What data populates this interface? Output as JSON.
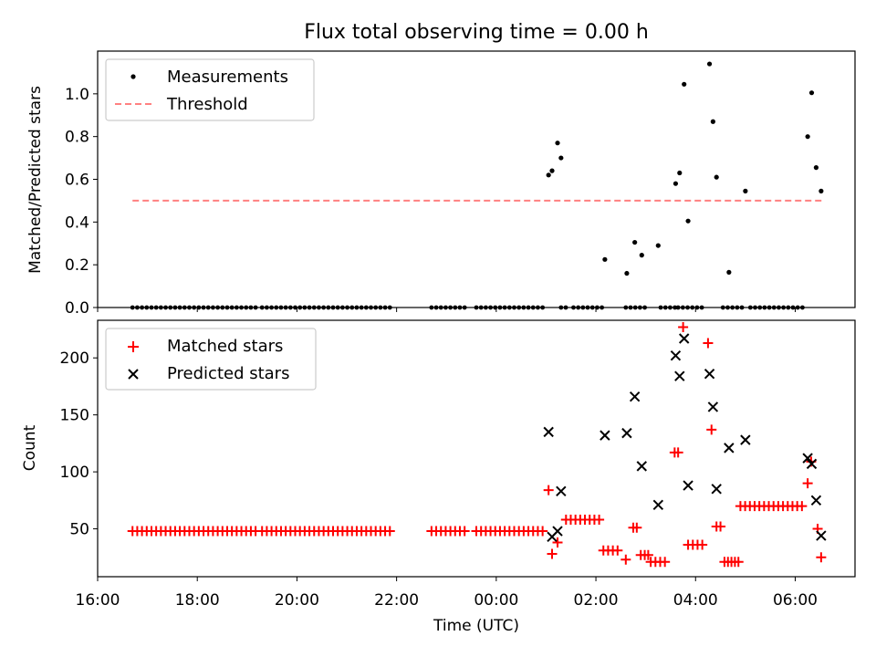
{
  "chart_data": [
    {
      "type": "scatter",
      "title": "Flux total observing time = 0.00 h",
      "ylabel": "Matched/Predicted stars",
      "xlabel": "",
      "xlim": [
        16.0,
        7.2
      ],
      "xlim_hours": [
        16.0,
        31.2
      ],
      "ylim": [
        0,
        1.2
      ],
      "yticks": [
        "0.0",
        "0.2",
        "0.4",
        "0.6",
        "0.8",
        "1.0"
      ],
      "yticks_values": [
        0,
        0.2,
        0.4,
        0.6,
        0.8,
        1.0
      ],
      "legend_position": "top-left",
      "threshold": {
        "name": "Threshold",
        "value": 0.5,
        "x_range_hours": [
          16.7,
          30.55
        ],
        "color": "#ff8080"
      },
      "measurements_name": "Measurements",
      "zero_segments_hours": [
        [
          16.7,
          19.2
        ],
        [
          19.3,
          21.95
        ],
        [
          22.7,
          23.4
        ],
        [
          23.6,
          25.0
        ],
        [
          25.3,
          25.4
        ],
        [
          25.55,
          26.2
        ],
        [
          26.6,
          27.0
        ],
        [
          27.3,
          27.6
        ],
        [
          27.65,
          28.2
        ],
        [
          28.55,
          29.0
        ],
        [
          29.1,
          30.15
        ]
      ],
      "points": [
        {
          "t": 25.05,
          "y": 0.62
        },
        {
          "t": 25.12,
          "y": 0.64
        },
        {
          "t": 25.23,
          "y": 0.77
        },
        {
          "t": 25.3,
          "y": 0.7
        },
        {
          "t": 26.18,
          "y": 0.225
        },
        {
          "t": 26.62,
          "y": 0.16
        },
        {
          "t": 26.78,
          "y": 0.305
        },
        {
          "t": 26.92,
          "y": 0.245
        },
        {
          "t": 27.25,
          "y": 0.29
        },
        {
          "t": 27.6,
          "y": 0.58
        },
        {
          "t": 27.68,
          "y": 0.63
        },
        {
          "t": 27.77,
          "y": 1.045
        },
        {
          "t": 27.85,
          "y": 0.405
        },
        {
          "t": 28.28,
          "y": 1.14
        },
        {
          "t": 28.35,
          "y": 0.87
        },
        {
          "t": 28.42,
          "y": 0.61
        },
        {
          "t": 28.67,
          "y": 0.165
        },
        {
          "t": 29.0,
          "y": 0.545
        },
        {
          "t": 30.25,
          "y": 0.8
        },
        {
          "t": 30.33,
          "y": 1.005
        },
        {
          "t": 30.42,
          "y": 0.655
        },
        {
          "t": 30.52,
          "y": 0.545
        }
      ]
    },
    {
      "type": "scatter",
      "title": "",
      "ylabel": "Count",
      "xlabel": "Time (UTC)",
      "xticks": [
        "16:00",
        "18:00",
        "20:00",
        "22:00",
        "00:00",
        "02:00",
        "04:00",
        "06:00"
      ],
      "xticks_hours": [
        16,
        18,
        20,
        22,
        24,
        26,
        28,
        30
      ],
      "xlim_hours": [
        16.0,
        31.2
      ],
      "ylim": [
        8,
        233
      ],
      "yticks": [
        "50",
        "100",
        "150",
        "200"
      ],
      "yticks_values": [
        50,
        100,
        150,
        200
      ],
      "legend_position": "top-left",
      "series": [
        {
          "name": "Matched stars",
          "marker": "plus",
          "color": "#ff0000",
          "runs": [
            {
              "from": 16.7,
              "to": 19.2,
              "y": 48
            },
            {
              "from": 19.3,
              "to": 21.95,
              "y": 48
            },
            {
              "from": 22.7,
              "to": 23.4,
              "y": 48
            },
            {
              "from": 23.6,
              "to": 25.0,
              "y": 48
            },
            {
              "from": 25.4,
              "to": 26.1,
              "y": 58
            },
            {
              "from": 26.15,
              "to": 26.5,
              "y": 31
            },
            {
              "from": 27.1,
              "to": 27.45,
              "y": 21
            },
            {
              "from": 27.85,
              "to": 28.2,
              "y": 36
            },
            {
              "from": 28.9,
              "to": 30.15,
              "y": 70
            }
          ],
          "points": [
            {
              "t": 25.05,
              "y": 84
            },
            {
              "t": 25.12,
              "y": 28
            },
            {
              "t": 25.23,
              "y": 38
            },
            {
              "t": 26.6,
              "y": 23
            },
            {
              "t": 26.75,
              "y": 51
            },
            {
              "t": 26.82,
              "y": 51
            },
            {
              "t": 26.9,
              "y": 27
            },
            {
              "t": 26.98,
              "y": 27
            },
            {
              "t": 27.05,
              "y": 27
            },
            {
              "t": 27.58,
              "y": 117
            },
            {
              "t": 27.65,
              "y": 117
            },
            {
              "t": 27.75,
              "y": 227
            },
            {
              "t": 28.25,
              "y": 213
            },
            {
              "t": 28.32,
              "y": 137
            },
            {
              "t": 28.42,
              "y": 52
            },
            {
              "t": 28.5,
              "y": 52
            },
            {
              "t": 28.58,
              "y": 21
            },
            {
              "t": 28.65,
              "y": 21
            },
            {
              "t": 28.72,
              "y": 21
            },
            {
              "t": 28.79,
              "y": 21
            },
            {
              "t": 28.86,
              "y": 21
            },
            {
              "t": 30.25,
              "y": 90
            },
            {
              "t": 30.32,
              "y": 109
            },
            {
              "t": 30.45,
              "y": 50
            },
            {
              "t": 30.52,
              "y": 25
            }
          ]
        },
        {
          "name": "Predicted stars",
          "marker": "x",
          "color": "#000000",
          "points": [
            {
              "t": 25.05,
              "y": 135
            },
            {
              "t": 25.12,
              "y": 43
            },
            {
              "t": 25.23,
              "y": 48
            },
            {
              "t": 25.3,
              "y": 83
            },
            {
              "t": 26.18,
              "y": 132
            },
            {
              "t": 26.62,
              "y": 134
            },
            {
              "t": 26.78,
              "y": 166
            },
            {
              "t": 26.92,
              "y": 105
            },
            {
              "t": 27.25,
              "y": 71
            },
            {
              "t": 27.6,
              "y": 202
            },
            {
              "t": 27.68,
              "y": 184
            },
            {
              "t": 27.77,
              "y": 217
            },
            {
              "t": 27.85,
              "y": 88
            },
            {
              "t": 28.28,
              "y": 186
            },
            {
              "t": 28.35,
              "y": 157
            },
            {
              "t": 28.42,
              "y": 85
            },
            {
              "t": 28.67,
              "y": 121
            },
            {
              "t": 29.0,
              "y": 128
            },
            {
              "t": 30.25,
              "y": 112
            },
            {
              "t": 30.33,
              "y": 107
            },
            {
              "t": 30.42,
              "y": 75
            },
            {
              "t": 30.52,
              "y": 44
            }
          ]
        }
      ]
    }
  ]
}
